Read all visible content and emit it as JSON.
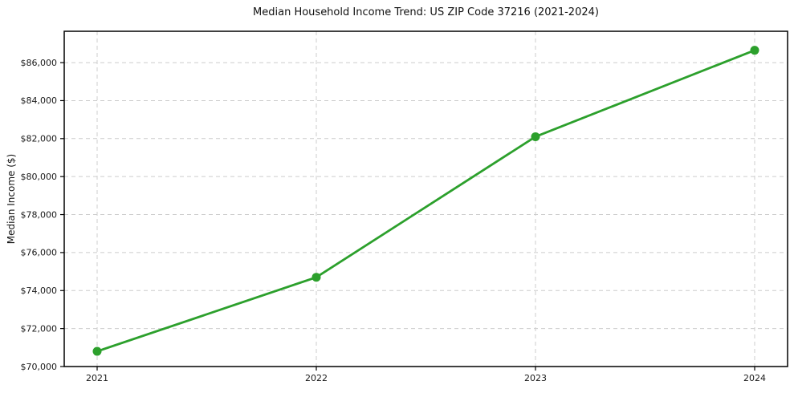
{
  "chart_data": {
    "type": "line",
    "title": "Median Household Income Trend: US ZIP Code 37216 (2021-2024)",
    "xlabel": "",
    "ylabel": "Median Income ($)",
    "x": [
      "2021",
      "2022",
      "2023",
      "2024"
    ],
    "series": [
      {
        "name": "Median Household Income",
        "values": [
          70800,
          74700,
          82100,
          86650
        ]
      }
    ],
    "ylim": [
      70000,
      87650
    ],
    "yticks": [
      70000,
      72000,
      74000,
      76000,
      78000,
      80000,
      82000,
      84000,
      86000
    ],
    "ytick_labels": [
      "$70,000",
      "$72,000",
      "$74,000",
      "$76,000",
      "$78,000",
      "$80,000",
      "$82,000",
      "$84,000",
      "$86,000"
    ],
    "grid": "dashed, both axes",
    "legend_position": "none",
    "marker": "circle",
    "line_color": "#2ca02c",
    "grid_color": "#cccccc",
    "axis_color": "#000000",
    "text_color": "#1a1a1a",
    "background_color": "#ffffff"
  }
}
